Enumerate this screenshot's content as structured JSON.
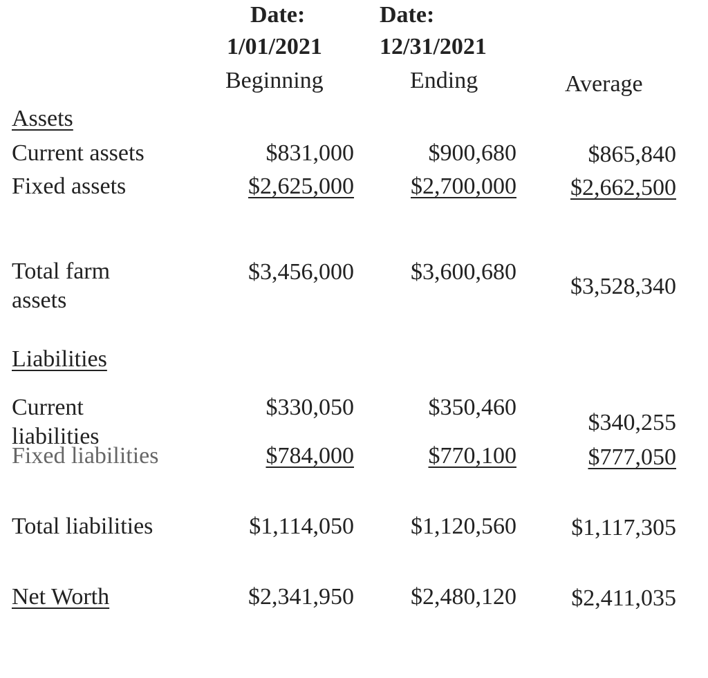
{
  "header": {
    "columns": [
      {
        "date_label": "Date:",
        "date": "1/01/2021",
        "label": "Beginning"
      },
      {
        "date_label": "Date:",
        "date": "12/31/2021",
        "label": "Ending"
      },
      {
        "label": "Average"
      }
    ]
  },
  "table": {
    "rows": [
      {
        "heading": "Assets"
      },
      {
        "label": "Current assets",
        "values": [
          "$831,000",
          "$900,680",
          "$865,840"
        ]
      },
      {
        "label": "Fixed assets",
        "values": [
          "$2,625,000",
          "$2,700,000",
          "$2,662,500"
        ],
        "underline": true
      },
      {
        "label": "Total farm assets",
        "values": [
          "$3,456,000",
          "$3,600,680",
          "$3,528,340"
        ]
      },
      {
        "heading": "Liabilities"
      },
      {
        "label": "Current liabilities",
        "values": [
          "$330,050",
          "$350,460",
          "$340,255"
        ]
      },
      {
        "label": "Fixed liabilities",
        "values": [
          "$784,000",
          "$770,100",
          "$777,050"
        ],
        "underline": true
      },
      {
        "label": "Total liabilities",
        "values": [
          "$1,114,050",
          "$1,120,560",
          "$1,117,305"
        ]
      },
      {
        "heading": "Net Worth",
        "values": [
          "$2,341,950",
          "$2,480,120",
          "$2,411,035"
        ]
      }
    ]
  }
}
